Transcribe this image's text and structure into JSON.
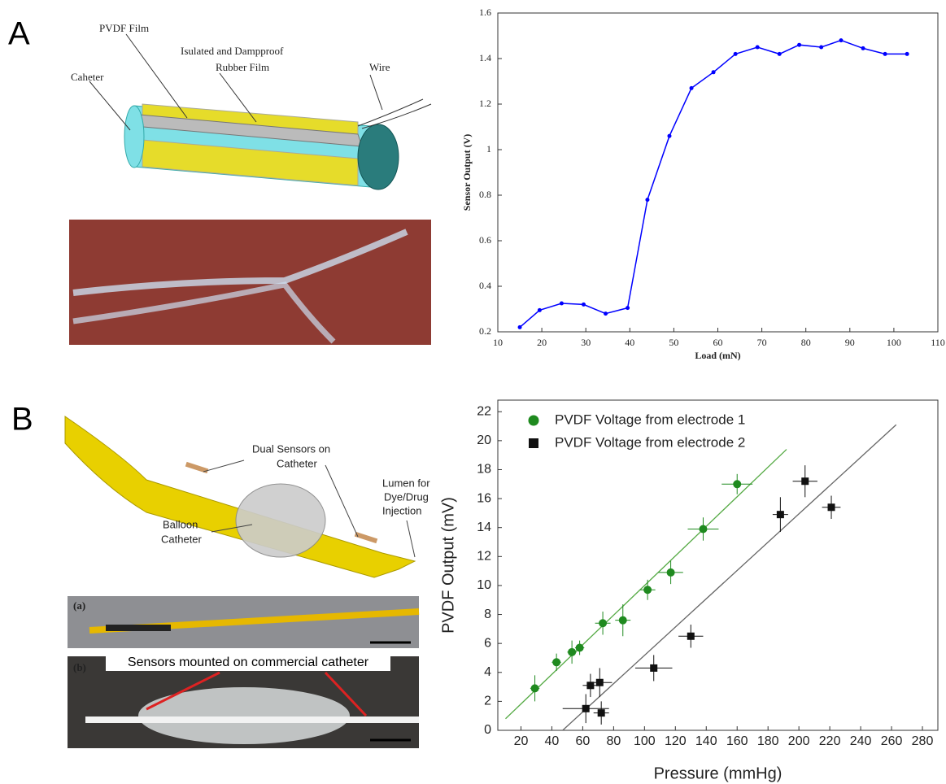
{
  "panels": {
    "a": "A",
    "b": "B"
  },
  "illustrations": {
    "pvdf_film": "PVDF Film",
    "rubber_film_1": "Isulated and Dampproof",
    "rubber_film_2": "Rubber Film",
    "wire": "Wire",
    "catheter": "Caheter",
    "dual_sensors_1": "Dual Sensors on",
    "dual_sensors_2": "Catheter",
    "lumen_1": "Lumen for",
    "lumen_2": "Dye/Drug",
    "lumen_3": "Injection",
    "balloon_1": "Balloon",
    "balloon_2": "Catheter",
    "photo_a": "(a)",
    "photo_b": "(b)",
    "sensors_mounted": "Sensors mounted on commercial catheter"
  },
  "chart_data": [
    {
      "type": "line",
      "x_label": "Load (mN)",
      "y_label": "Sensor Output (V)",
      "xlim": [
        10,
        110
      ],
      "xticks": [
        10,
        20,
        30,
        40,
        50,
        60,
        70,
        80,
        90,
        100,
        110
      ],
      "ylim": [
        0.2,
        1.6
      ],
      "yticks": [
        0.2,
        0.4,
        0.6,
        0.8,
        1,
        1.2,
        1.4,
        1.6
      ],
      "series": [
        {
          "color": "#0000ff",
          "x": [
            15,
            19.5,
            24.5,
            29.5,
            34.5,
            39.5,
            44,
            49,
            54,
            59,
            64,
            69,
            74,
            78.5,
            83.5,
            88,
            93,
            98,
            103
          ],
          "values": [
            0.22,
            0.295,
            0.325,
            0.32,
            0.28,
            0.305,
            0.78,
            1.06,
            1.27,
            1.34,
            1.42,
            1.45,
            1.42,
            1.46,
            1.45,
            1.48,
            1.445,
            1.42,
            1.42
          ]
        }
      ]
    },
    {
      "type": "scatter",
      "x_label": "Pressure (mmHg)",
      "y_label": "PVDF Output (mV)",
      "xlim": [
        5,
        290
      ],
      "xticks": [
        20,
        40,
        60,
        80,
        100,
        120,
        140,
        160,
        180,
        200,
        220,
        240,
        260,
        280
      ],
      "ylim": [
        0,
        22.8
      ],
      "yticks": [
        0,
        2,
        4,
        6,
        8,
        10,
        12,
        14,
        16,
        18,
        20,
        22
      ],
      "series": [
        {
          "name": "PVDF Voltage from electrode 1",
          "color": "#1f8a1f",
          "marker": "circle",
          "x": [
            29,
            43,
            53,
            58,
            73,
            86,
            102,
            117,
            138,
            160
          ],
          "values": [
            2.9,
            4.7,
            5.4,
            5.7,
            7.4,
            7.6,
            9.7,
            10.9,
            13.9,
            17.0
          ],
          "yerr": [
            0.9,
            0.6,
            0.8,
            0.5,
            0.8,
            1.1,
            0.7,
            0.8,
            0.8,
            0.7
          ],
          "xerr": [
            3,
            3,
            3,
            3,
            5,
            5,
            5,
            8,
            10,
            10
          ],
          "fit_color": "#55aa44",
          "fit_x": [
            10,
            192
          ],
          "fit_y": [
            0.8,
            19.4
          ]
        },
        {
          "name": "PVDF Voltage from electrode 2",
          "color": "#111111",
          "marker": "square",
          "x": [
            62,
            65,
            71,
            72,
            106,
            130,
            188,
            204,
            221
          ],
          "values": [
            1.5,
            3.1,
            3.3,
            1.2,
            4.3,
            6.5,
            14.9,
            17.2,
            15.4
          ],
          "yerr": [
            1.0,
            0.8,
            1.0,
            0.8,
            0.9,
            0.8,
            1.2,
            1.1,
            0.8
          ],
          "xerr": [
            15,
            5,
            8,
            5,
            12,
            8,
            5,
            8,
            6
          ],
          "fit_color": "#666666",
          "fit_x": [
            47,
            263
          ],
          "fit_y": [
            0,
            21.1
          ]
        }
      ]
    }
  ]
}
